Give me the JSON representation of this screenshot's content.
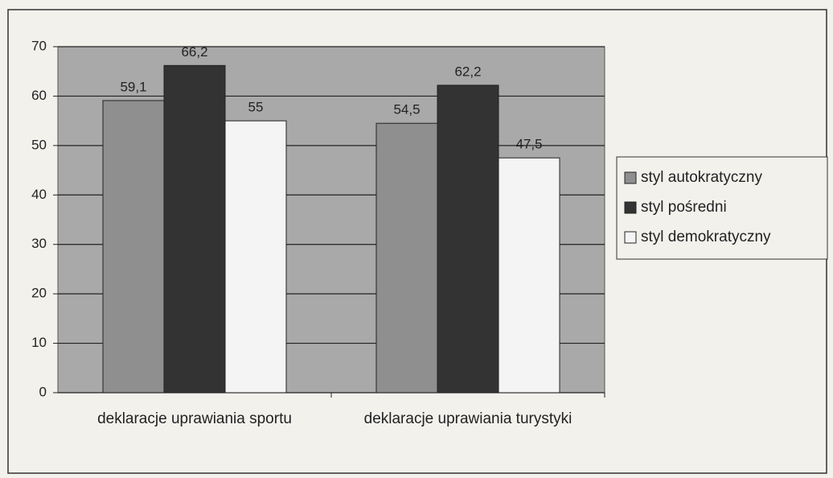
{
  "chart_data": {
    "type": "bar",
    "categories": [
      "deklaracje uprawiania sportu",
      "deklaracje uprawiania turystyki"
    ],
    "series": [
      {
        "name": "styl autokratyczny",
        "color": "#8f8f8f",
        "values": [
          59.1,
          54.5
        ],
        "value_labels": [
          "59,1",
          "54,5"
        ]
      },
      {
        "name": "styl pośredni",
        "color": "#333333",
        "values": [
          66.2,
          62.2
        ],
        "value_labels": [
          "66,2",
          "62,2"
        ]
      },
      {
        "name": "styl demokratyczny",
        "color": "#f4f4f4",
        "values": [
          55,
          47.5
        ],
        "value_labels": [
          "55",
          "47,5"
        ]
      }
    ],
    "ylim": [
      0,
      70
    ],
    "yticks": [
      0,
      10,
      20,
      30,
      40,
      50,
      60,
      70
    ],
    "grid": true,
    "legend": "right"
  }
}
